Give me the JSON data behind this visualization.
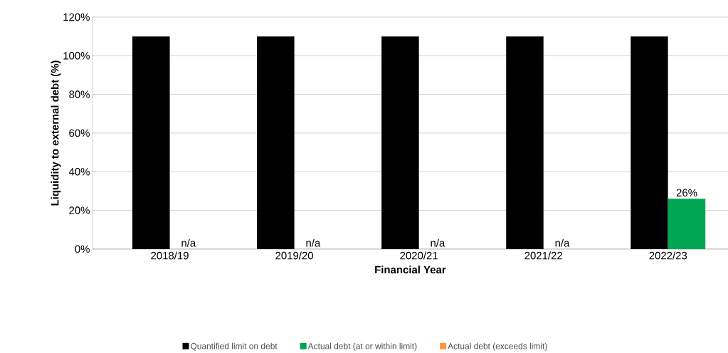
{
  "chart_data": {
    "type": "bar",
    "xlabel": "Financial Year",
    "ylabel": "Liquidity to external debt (%)",
    "categories": [
      "2018/19",
      "2019/20",
      "2020/21",
      "2021/22",
      "2022/23"
    ],
    "series": [
      {
        "name": "Quantified limit on debt",
        "color": "#000000",
        "values": [
          110,
          110,
          110,
          110,
          110
        ]
      },
      {
        "name": "Actual debt (at or within limit)",
        "color": "#00a651",
        "values": [
          null,
          null,
          null,
          null,
          26
        ],
        "value_labels": [
          "n/a",
          "n/a",
          "n/a",
          "n/a",
          "26%"
        ]
      },
      {
        "name": "Actual debt (exceeds limit)",
        "color": "#f7964a",
        "values": [
          null,
          null,
          null,
          null,
          null
        ]
      }
    ],
    "ylim": [
      0,
      120
    ],
    "yticks": [
      {
        "value": 0,
        "label": "0%"
      },
      {
        "value": 20,
        "label": "20%"
      },
      {
        "value": 40,
        "label": "40%"
      },
      {
        "value": 60,
        "label": "60%"
      },
      {
        "value": 80,
        "label": "80%"
      },
      {
        "value": 100,
        "label": "100%"
      },
      {
        "value": 120,
        "label": "120%"
      }
    ],
    "grid": "y",
    "legend": "bottom"
  }
}
